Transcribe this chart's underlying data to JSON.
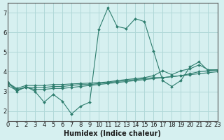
{
  "xlabel": "Humidex (Indice chaleur)",
  "bg_color": "#d6f0f0",
  "grid_color": "#b0d8d8",
  "line_color": "#2e7d6e",
  "xlim": [
    0,
    23
  ],
  "ylim": [
    1.5,
    7.5
  ],
  "xticks": [
    0,
    1,
    2,
    3,
    4,
    5,
    6,
    7,
    8,
    9,
    10,
    11,
    12,
    13,
    14,
    15,
    16,
    17,
    18,
    19,
    20,
    21,
    22,
    23
  ],
  "yticks": [
    2,
    3,
    4,
    5,
    6,
    7
  ],
  "lines": [
    {
      "x": [
        0,
        1,
        2,
        3,
        4,
        5,
        6,
        7,
        8,
        9,
        10,
        11,
        12,
        13,
        14,
        15,
        16,
        17,
        18,
        19,
        20,
        21,
        22,
        23
      ],
      "y": [
        3.5,
        3.0,
        3.25,
        3.0,
        2.45,
        2.85,
        2.5,
        1.85,
        2.25,
        2.45,
        6.15,
        7.25,
        6.3,
        6.2,
        6.7,
        6.55,
        5.05,
        3.55,
        3.25,
        3.55,
        4.25,
        4.5,
        4.05,
        4.1
      ]
    },
    {
      "x": [
        0,
        1,
        2,
        3,
        4,
        5,
        6,
        7,
        8,
        9,
        10,
        11,
        12,
        13,
        14,
        15,
        16,
        17,
        18,
        19,
        20,
        21,
        22,
        23
      ],
      "y": [
        3.3,
        3.05,
        3.2,
        3.1,
        3.1,
        3.15,
        3.15,
        3.2,
        3.25,
        3.3,
        3.35,
        3.4,
        3.45,
        3.5,
        3.55,
        3.6,
        3.65,
        3.7,
        3.75,
        3.8,
        3.85,
        3.9,
        3.95,
        4.0
      ]
    },
    {
      "x": [
        0,
        1,
        2,
        3,
        4,
        5,
        6,
        7,
        8,
        9,
        10,
        11,
        12,
        13,
        14,
        15,
        16,
        17,
        18,
        19,
        20,
        21,
        22,
        23
      ],
      "y": [
        3.4,
        3.1,
        3.2,
        3.2,
        3.2,
        3.25,
        3.25,
        3.3,
        3.35,
        3.35,
        3.4,
        3.45,
        3.5,
        3.55,
        3.6,
        3.65,
        3.7,
        3.7,
        3.75,
        3.8,
        3.9,
        4.0,
        4.05,
        4.08
      ]
    },
    {
      "x": [
        0,
        1,
        2,
        3,
        4,
        5,
        6,
        7,
        8,
        9,
        10,
        11,
        12,
        13,
        14,
        15,
        16,
        17,
        18,
        19,
        20,
        21,
        22,
        23
      ],
      "y": [
        3.45,
        3.15,
        3.3,
        3.3,
        3.3,
        3.35,
        3.35,
        3.38,
        3.4,
        3.42,
        3.45,
        3.48,
        3.55,
        3.6,
        3.65,
        3.7,
        3.8,
        4.05,
        3.85,
        4.05,
        4.15,
        4.35,
        4.1,
        4.1
      ]
    }
  ]
}
